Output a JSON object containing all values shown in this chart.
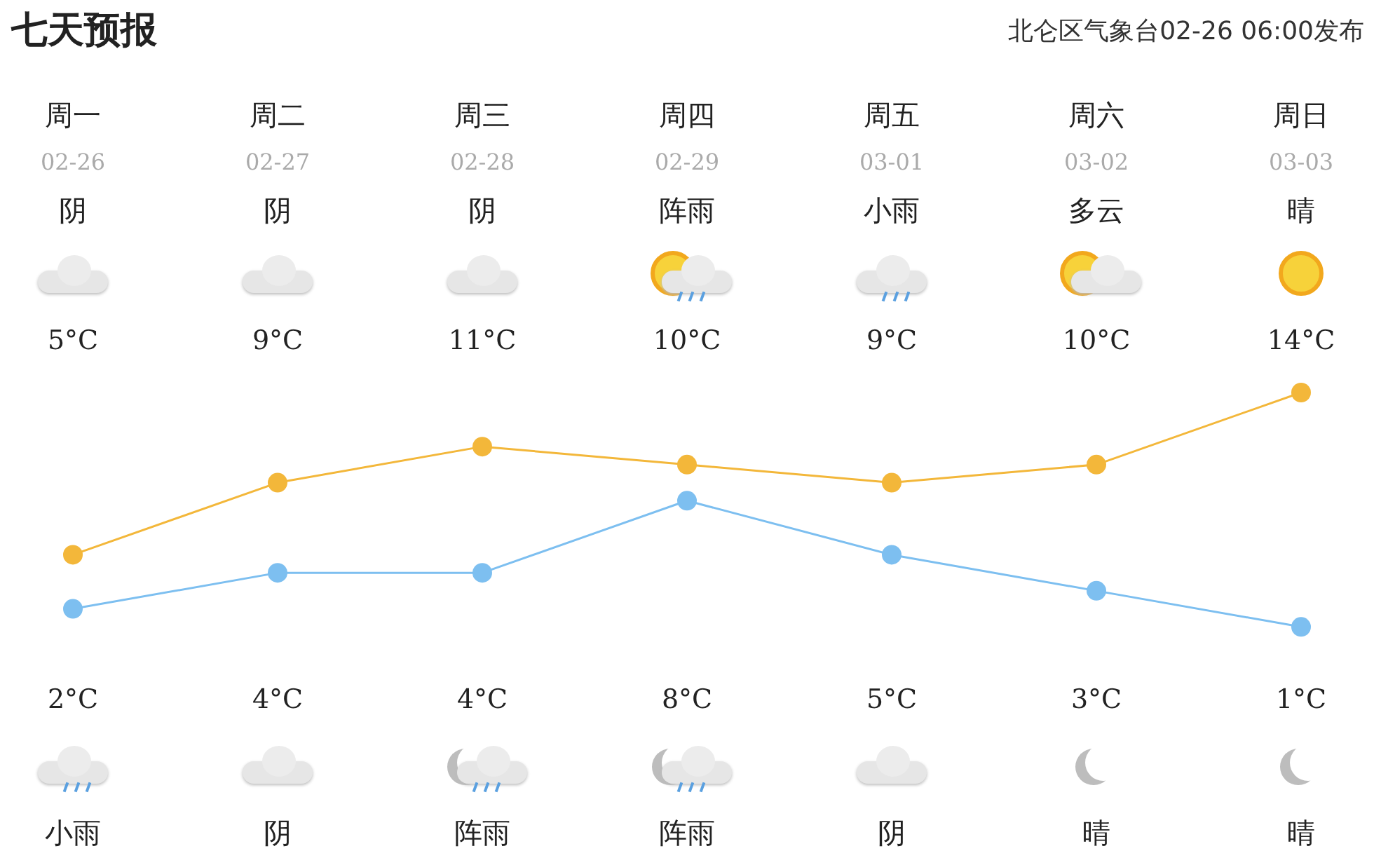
{
  "chart_data": {
    "type": "line",
    "title": "七天预报",
    "subtitle": "北仑区气象台02-26 06:00发布",
    "categories": [
      "周一",
      "周二",
      "周三",
      "周四",
      "周五",
      "周六",
      "周日"
    ],
    "series": [
      {
        "color": "#f3b73a",
        "values": [
          5,
          9,
          11,
          10,
          9,
          10,
          14
        ],
        "value_labels": [
          "5°C",
          "9°C",
          "11°C",
          "10°C",
          "9°C",
          "10°C",
          "14°C"
        ]
      },
      {
        "color": "#7dbff0",
        "values": [
          2,
          4,
          4,
          8,
          5,
          3,
          1
        ],
        "value_labels": [
          "2°C",
          "4°C",
          "4°C",
          "8°C",
          "5°C",
          "3°C",
          "1°C"
        ]
      }
    ],
    "annotations": [
      "02-26",
      "02-27",
      "02-28",
      "02-29",
      "03-01",
      "03-02",
      "03-03",
      "阴",
      "阴",
      "阴",
      "阵雨",
      "小雨",
      "多云",
      "晴",
      "小雨",
      "阴",
      "阵雨",
      "阵雨",
      "阴",
      "晴",
      "晴"
    ],
    "legend": false,
    "tick_labels": false,
    "marker": "circle",
    "line_style": "solid"
  }
}
